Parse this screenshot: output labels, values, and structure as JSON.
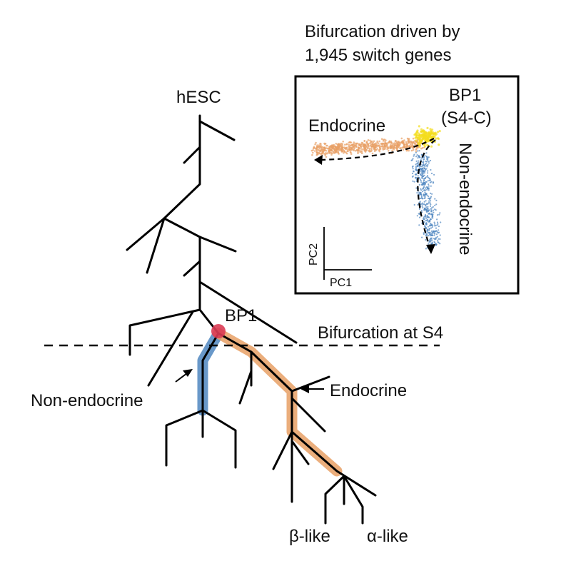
{
  "tree": {
    "root_label": "hESC",
    "branch_point_label": "BP1",
    "bifurcation_label": "Bifurcation at S4",
    "non_endocrine_label": "Non-endocrine",
    "endocrine_label": "Endocrine",
    "beta_label": "β-like",
    "alpha_label": "α-like"
  },
  "inset": {
    "title_line1": "Bifurcation driven by",
    "title_line2": "1,945 switch genes",
    "bp_label_line1": "BP1",
    "bp_label_line2": "(S4-C)",
    "endocrine_label": "Endocrine",
    "non_endocrine_label": "Non-endocrine",
    "pc1_label": "PC1",
    "pc2_label": "PC2"
  },
  "colors": {
    "endocrine": "#e8a065",
    "non_endocrine": "#4f86c0",
    "branch_point": "#dc3c55",
    "bp_cluster": "#f3dd1c",
    "line": "#000000"
  }
}
